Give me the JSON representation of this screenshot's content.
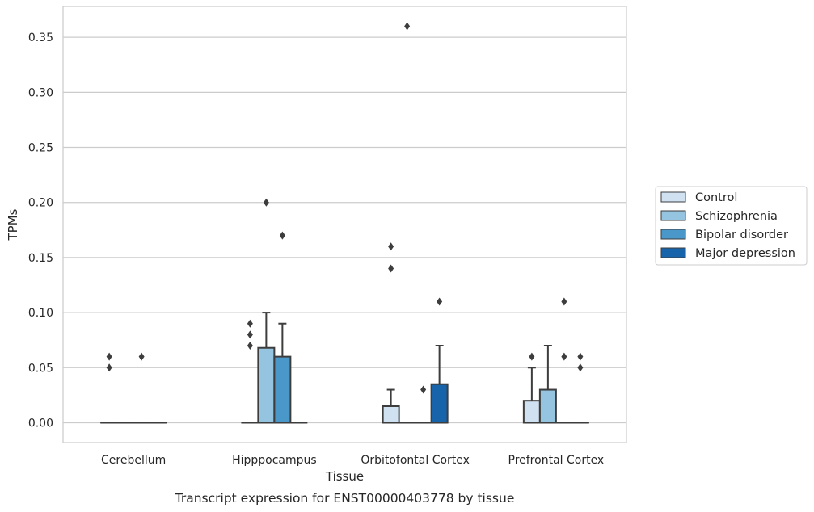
{
  "chart_data": {
    "type": "boxplot",
    "caption": "Transcript expression for ENST00000403778 by tissue",
    "xlabel": "Tissue",
    "ylabel": "TPMs",
    "ylim": [
      -0.018,
      0.378
    ],
    "yticks": [
      0.0,
      0.05,
      0.1,
      0.15,
      0.2,
      0.25,
      0.3,
      0.35
    ],
    "ytick_labels": [
      "0.00",
      "0.05",
      "0.10",
      "0.15",
      "0.20",
      "0.25",
      "0.30",
      "0.35"
    ],
    "grid": "horizontal",
    "legend_position": "right",
    "categories": [
      "Cerebellum",
      "Hipppocampus",
      "Orbitofontal Cortex",
      "Prefrontal Cortex"
    ],
    "series": [
      {
        "name": "Control",
        "color": "#d0e1f2",
        "boxes": [
          {
            "q1": 0,
            "median": 0,
            "q3": 0,
            "whisker_low": 0,
            "whisker_high": 0,
            "outliers": [
              0.05,
              0.06
            ]
          },
          {
            "q1": 0,
            "median": 0,
            "q3": 0,
            "whisker_low": 0,
            "whisker_high": 0,
            "outliers": [
              0.07,
              0.08,
              0.09
            ]
          },
          {
            "q1": 0,
            "median": 0,
            "q3": 0.015,
            "whisker_low": 0,
            "whisker_high": 0.03,
            "outliers": [
              0.14,
              0.16
            ]
          },
          {
            "q1": 0,
            "median": 0,
            "q3": 0.02,
            "whisker_low": 0,
            "whisker_high": 0.05,
            "outliers": [
              0.06
            ]
          }
        ]
      },
      {
        "name": "Schizophrenia",
        "color": "#94c4df",
        "boxes": [
          {
            "q1": 0,
            "median": 0,
            "q3": 0,
            "whisker_low": 0,
            "whisker_high": 0,
            "outliers": []
          },
          {
            "q1": 0,
            "median": 0,
            "q3": 0.068,
            "whisker_low": 0,
            "whisker_high": 0.1,
            "outliers": [
              0.2
            ]
          },
          {
            "q1": 0,
            "median": 0,
            "q3": 0,
            "whisker_low": 0,
            "whisker_high": 0,
            "outliers": [
              0.36
            ]
          },
          {
            "q1": 0,
            "median": 0,
            "q3": 0.03,
            "whisker_low": 0,
            "whisker_high": 0.07,
            "outliers": []
          }
        ]
      },
      {
        "name": "Bipolar disorder",
        "color": "#4a98c9",
        "boxes": [
          {
            "q1": 0,
            "median": 0,
            "q3": 0,
            "whisker_low": 0,
            "whisker_high": 0,
            "outliers": [
              0.06
            ]
          },
          {
            "q1": 0,
            "median": 0,
            "q3": 0.06,
            "whisker_low": 0,
            "whisker_high": 0.09,
            "outliers": [
              0.17
            ]
          },
          {
            "q1": 0,
            "median": 0,
            "q3": 0,
            "whisker_low": 0,
            "whisker_high": 0,
            "outliers": [
              0.03
            ]
          },
          {
            "q1": 0,
            "median": 0,
            "q3": 0,
            "whisker_low": 0,
            "whisker_high": 0,
            "outliers": [
              0.06,
              0.11
            ]
          }
        ]
      },
      {
        "name": "Major depression",
        "color": "#1764ab",
        "boxes": [
          {
            "q1": 0,
            "median": 0,
            "q3": 0,
            "whisker_low": 0,
            "whisker_high": 0,
            "outliers": []
          },
          {
            "q1": 0,
            "median": 0,
            "q3": 0,
            "whisker_low": 0,
            "whisker_high": 0,
            "outliers": []
          },
          {
            "q1": 0,
            "median": 0,
            "q3": 0.035,
            "whisker_low": 0,
            "whisker_high": 0.07,
            "outliers": [
              0.11
            ]
          },
          {
            "q1": 0,
            "median": 0,
            "q3": 0,
            "whisker_low": 0,
            "whisker_high": 0,
            "outliers": [
              0.05,
              0.06
            ]
          }
        ]
      }
    ]
  }
}
